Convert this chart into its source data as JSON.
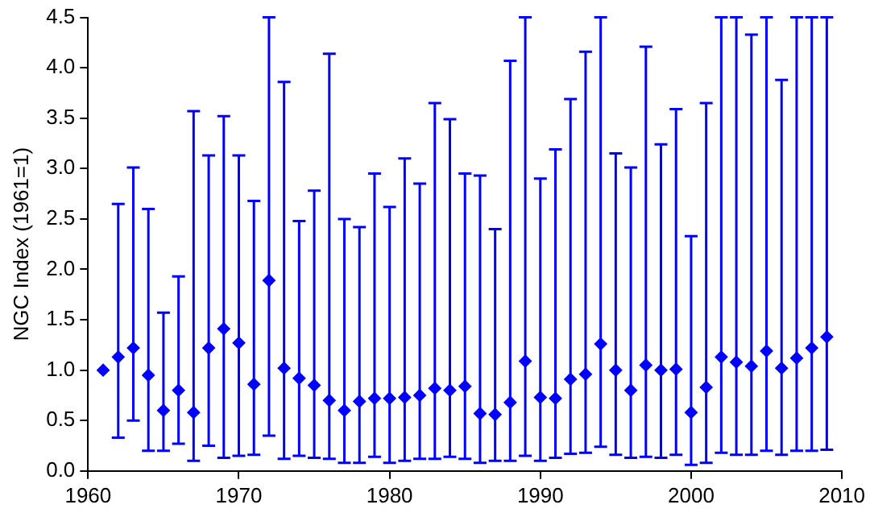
{
  "chart_data": {
    "type": "scatter",
    "ylabel": "NGC Index (1961=1)",
    "marker": "diamond",
    "grid": false,
    "legend": false,
    "x": [
      1961,
      1962,
      1963,
      1964,
      1965,
      1966,
      1967,
      1968,
      1969,
      1970,
      1971,
      1972,
      1973,
      1974,
      1975,
      1976,
      1977,
      1978,
      1979,
      1980,
      1981,
      1982,
      1983,
      1984,
      1985,
      1986,
      1987,
      1988,
      1989,
      1990,
      1991,
      1992,
      1993,
      1994,
      1995,
      1996,
      1997,
      1998,
      1999,
      2000,
      2001,
      2002,
      2003,
      2004,
      2005,
      2006,
      2007,
      2008,
      2009
    ],
    "series": [
      {
        "color": "#0000ff",
        "values": [
          1.0,
          1.13,
          1.22,
          0.95,
          0.6,
          0.8,
          0.58,
          1.22,
          1.41,
          1.27,
          0.86,
          1.89,
          1.02,
          0.92,
          0.85,
          0.7,
          0.6,
          0.69,
          0.72,
          0.72,
          0.73,
          0.75,
          0.82,
          0.8,
          0.84,
          0.57,
          0.56,
          0.68,
          1.09,
          0.73,
          0.72,
          0.91,
          0.96,
          1.26,
          1.0,
          0.8,
          1.05,
          1.0,
          1.01,
          0.58,
          0.83,
          1.13,
          1.08,
          1.04,
          1.19,
          1.02,
          1.12,
          1.22,
          1.33
        ],
        "errors": [
          null,
          [
            0.33,
            2.65
          ],
          [
            0.5,
            3.01
          ],
          [
            0.2,
            2.6
          ],
          [
            0.2,
            1.57
          ],
          [
            0.27,
            1.93
          ],
          [
            0.1,
            3.57
          ],
          [
            0.25,
            3.13
          ],
          [
            0.13,
            3.52
          ],
          [
            0.15,
            3.13
          ],
          [
            0.16,
            2.68
          ],
          [
            0.35,
            4.5
          ],
          [
            0.12,
            3.86
          ],
          [
            0.15,
            2.48
          ],
          [
            0.13,
            2.78
          ],
          [
            0.12,
            4.14
          ],
          [
            0.08,
            2.5
          ],
          [
            0.08,
            2.42
          ],
          [
            0.14,
            2.95
          ],
          [
            0.08,
            2.62
          ],
          [
            0.1,
            3.1
          ],
          [
            0.12,
            2.85
          ],
          [
            0.12,
            3.65
          ],
          [
            0.14,
            3.49
          ],
          [
            0.12,
            2.95
          ],
          [
            0.08,
            2.93
          ],
          [
            0.1,
            2.4
          ],
          [
            0.1,
            4.07
          ],
          [
            0.15,
            4.5
          ],
          [
            0.1,
            2.9
          ],
          [
            0.13,
            3.19
          ],
          [
            0.17,
            3.69
          ],
          [
            0.18,
            4.16
          ],
          [
            0.24,
            4.5
          ],
          [
            0.16,
            3.15
          ],
          [
            0.13,
            3.01
          ],
          [
            0.14,
            4.21
          ],
          [
            0.13,
            3.24
          ],
          [
            0.16,
            3.59
          ],
          [
            0.06,
            2.33
          ],
          [
            0.08,
            3.65
          ],
          [
            0.18,
            4.5
          ],
          [
            0.16,
            4.5
          ],
          [
            0.16,
            4.33
          ],
          [
            0.2,
            4.5
          ],
          [
            0.16,
            3.88
          ],
          [
            0.2,
            4.5
          ],
          [
            0.2,
            4.5
          ],
          [
            0.21,
            4.5
          ]
        ]
      }
    ],
    "xlim": [
      1960,
      2010
    ],
    "xticks": [
      1960,
      1970,
      1980,
      1990,
      2000,
      2010
    ],
    "ylim": [
      0,
      4.5
    ],
    "yticks": [
      {
        "value": 0,
        "label": "0.0"
      },
      {
        "value": 0.5,
        "label": "0.5"
      },
      {
        "value": 1,
        "label": "1.0"
      },
      {
        "value": 1.5,
        "label": "1.5"
      },
      {
        "value": 2,
        "label": "2.0"
      },
      {
        "value": 2.5,
        "label": "2.5"
      },
      {
        "value": 3,
        "label": "3.0"
      },
      {
        "value": 3.5,
        "label": "3.5"
      },
      {
        "value": 4,
        "label": "4.0"
      },
      {
        "value": 4.5,
        "label": "4.5"
      }
    ]
  }
}
